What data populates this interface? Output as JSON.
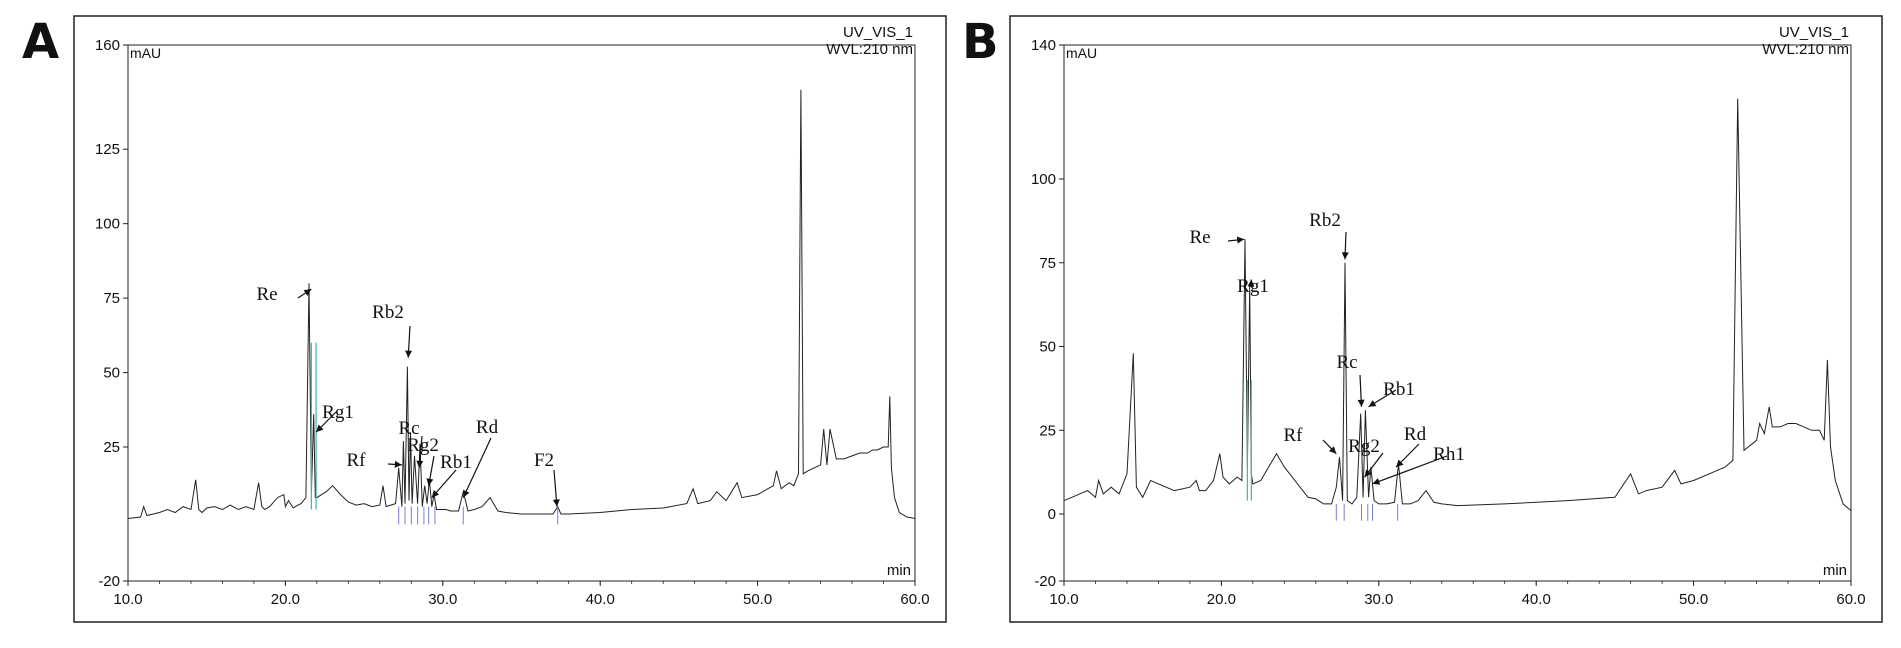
{
  "panels": [
    {
      "letter": "A"
    },
    {
      "letter": "B"
    }
  ],
  "chart_data": [
    {
      "type": "line",
      "panel": "A",
      "header_right": [
        "UV_VIS_1",
        "WVL:210 nm"
      ],
      "ylabel": "mAU",
      "xlabel": "min",
      "xlim": [
        10.0,
        60.0
      ],
      "ylim": [
        -20,
        160
      ],
      "xticks": [
        "10.0",
        "20.0",
        "30.0",
        "40.0",
        "50.0",
        "60.0"
      ],
      "yticks": [
        "160",
        "125",
        "100",
        "75",
        "50",
        "25",
        "-20"
      ],
      "ytick_values": [
        160,
        125,
        100,
        75,
        50,
        25,
        -20
      ],
      "series": [
        {
          "x": [
            10.0,
            10.8,
            11.0,
            11.2,
            12.0,
            12.5,
            13.0,
            13.5,
            14.0,
            14.3,
            14.5,
            14.7,
            15.0,
            15.5,
            16.0,
            16.5,
            17.0,
            17.5,
            18.0,
            18.3,
            18.5,
            18.7,
            19.0,
            19.5,
            19.9,
            20.0,
            20.2,
            20.5,
            20.8,
            21.0,
            21.3,
            21.5,
            21.65,
            21.8,
            21.9,
            22.0,
            22.3,
            22.6,
            23.0,
            23.5,
            24.0,
            24.5,
            25.0,
            25.5,
            26.0,
            26.2,
            26.4,
            26.7,
            27.0,
            27.2,
            27.4,
            27.5,
            27.6,
            27.75,
            27.85,
            27.95,
            28.05,
            28.2,
            28.4,
            28.55,
            28.7,
            28.85,
            29.0,
            29.15,
            29.3,
            29.45,
            29.6,
            29.9,
            30.2,
            30.5,
            31.0,
            31.3,
            31.6,
            32.0,
            32.5,
            33.0,
            33.5,
            34.0,
            35.0,
            36.0,
            37.0,
            37.3,
            37.5,
            38.0,
            40.0,
            42.0,
            44.0,
            45.5,
            45.9,
            46.2,
            47.0,
            47.4,
            48.0,
            48.7,
            49.0,
            50.0,
            51.0,
            51.2,
            51.5,
            52.0,
            52.3,
            52.6,
            52.75,
            52.9,
            53.2,
            53.6,
            54.0,
            54.2,
            54.4,
            54.6,
            55.0,
            55.5,
            56.0,
            56.5,
            57.0,
            57.3,
            57.6,
            58.0,
            58.3,
            58.4,
            58.5,
            58.7,
            59.0,
            59.5,
            60.0
          ],
          "y": [
            1.0,
            1.5,
            5.0,
            2.0,
            3.0,
            4.0,
            3.0,
            5.0,
            4.0,
            14.0,
            4.0,
            3.0,
            4.5,
            5.0,
            4.0,
            5.5,
            4.0,
            5.0,
            4.0,
            13.0,
            5.0,
            4.0,
            5.0,
            8.0,
            9.0,
            5.0,
            7.0,
            4.5,
            5.5,
            6.0,
            8.0,
            80.0,
            10.0,
            36.0,
            8.0,
            8.0,
            9.0,
            10.0,
            12.0,
            9.0,
            6.5,
            5.5,
            6.0,
            5.0,
            5.5,
            12.0,
            5.0,
            5.5,
            6.0,
            18.0,
            5.0,
            27.0,
            6.0,
            52.0,
            7.0,
            30.0,
            6.0,
            22.0,
            6.0,
            26.0,
            5.0,
            12.0,
            6.0,
            14.0,
            5.0,
            9.0,
            4.0,
            4.0,
            4.0,
            3.5,
            3.5,
            10.0,
            3.5,
            4.0,
            5.0,
            8.0,
            3.5,
            3.0,
            2.5,
            2.5,
            2.5,
            5.0,
            2.5,
            2.5,
            3.0,
            4.0,
            4.5,
            6.0,
            11.0,
            6.0,
            7.0,
            10.0,
            7.0,
            13.0,
            8.0,
            9.0,
            12.0,
            17.0,
            11.0,
            13.0,
            12.0,
            16.0,
            145.0,
            16.0,
            17.0,
            18.0,
            19.0,
            31.0,
            19.0,
            31.0,
            21.0,
            21.0,
            22.0,
            23.0,
            23.0,
            24.0,
            24.0,
            25.0,
            25.0,
            42.0,
            18.0,
            8.0,
            3.0,
            1.5,
            1.0
          ]
        }
      ],
      "annotations": [
        "Re",
        "Rg1",
        "Rb2",
        "Rf",
        "Rc",
        "Rg2",
        "Rb1",
        "Rd",
        "F2"
      ]
    },
    {
      "type": "line",
      "panel": "B",
      "header_right": [
        "UV_VIS_1",
        "WVL:210 nm"
      ],
      "ylabel": "mAU",
      "xlabel": "min",
      "xlim": [
        10.0,
        60.0
      ],
      "ylim": [
        -20,
        140
      ],
      "xticks": [
        "10.0",
        "20.0",
        "30.0",
        "40.0",
        "50.0",
        "60.0"
      ],
      "yticks": [
        "140",
        "100",
        "75",
        "50",
        "25",
        "0",
        "-20"
      ],
      "ytick_values": [
        140,
        100,
        75,
        50,
        25,
        0,
        -20
      ],
      "series": [
        {
          "x": [
            10.0,
            10.5,
            11.0,
            11.5,
            12.0,
            12.2,
            12.5,
            13.0,
            13.5,
            14.0,
            14.4,
            14.6,
            15.0,
            15.5,
            16.0,
            17.0,
            18.0,
            18.4,
            18.6,
            19.0,
            19.5,
            19.9,
            20.1,
            20.5,
            21.0,
            21.3,
            21.5,
            21.65,
            21.8,
            21.9,
            22.0,
            22.5,
            23.0,
            23.5,
            24.0,
            24.5,
            25.0,
            25.5,
            26.0,
            26.5,
            27.0,
            27.3,
            27.5,
            27.7,
            27.85,
            28.0,
            28.3,
            28.6,
            28.85,
            29.0,
            29.15,
            29.35,
            29.5,
            29.7,
            30.0,
            30.5,
            31.0,
            31.25,
            31.5,
            32.0,
            32.5,
            33.0,
            33.5,
            34.0,
            35.0,
            38.0,
            42.0,
            45.0,
            46.0,
            46.5,
            47.0,
            48.0,
            48.8,
            49.2,
            50.0,
            51.0,
            52.0,
            52.5,
            52.8,
            53.2,
            54.0,
            54.2,
            54.5,
            54.8,
            55.0,
            55.5,
            56.0,
            56.5,
            57.0,
            57.5,
            58.0,
            58.3,
            58.5,
            58.7,
            59.0,
            59.5,
            60.0
          ],
          "y": [
            4.0,
            5.0,
            6.0,
            7.0,
            5.0,
            10.0,
            6.0,
            8.0,
            6.0,
            12.0,
            48.0,
            8.0,
            5.0,
            10.0,
            9.0,
            7.0,
            8.0,
            10.0,
            7.0,
            7.0,
            10.0,
            18.0,
            11.0,
            9.0,
            11.0,
            10.0,
            82.0,
            14.0,
            68.0,
            12.0,
            9.0,
            10.0,
            14.0,
            18.0,
            14.0,
            11.0,
            8.0,
            5.0,
            4.5,
            3.0,
            3.0,
            8.0,
            17.0,
            4.0,
            75.0,
            4.0,
            3.0,
            5.0,
            30.0,
            5.0,
            31.0,
            5.0,
            14.0,
            4.0,
            3.0,
            3.0,
            3.5,
            15.0,
            3.0,
            3.0,
            4.0,
            7.0,
            3.5,
            3.0,
            2.5,
            3.0,
            4.0,
            5.0,
            12.0,
            6.0,
            7.0,
            8.0,
            13.0,
            9.0,
            10.0,
            12.0,
            14.0,
            16.0,
            124.0,
            19.0,
            22.0,
            27.0,
            24.0,
            32.0,
            26.0,
            26.0,
            27.0,
            27.0,
            26.0,
            25.0,
            25.0,
            22.0,
            46.0,
            20.0,
            10.0,
            3.0,
            1.0
          ]
        }
      ],
      "annotations": [
        "Re",
        "Rg1",
        "Rb2",
        "Rc",
        "Rb1",
        "Rf",
        "Rg2",
        "Rd",
        "Rh1"
      ]
    }
  ]
}
